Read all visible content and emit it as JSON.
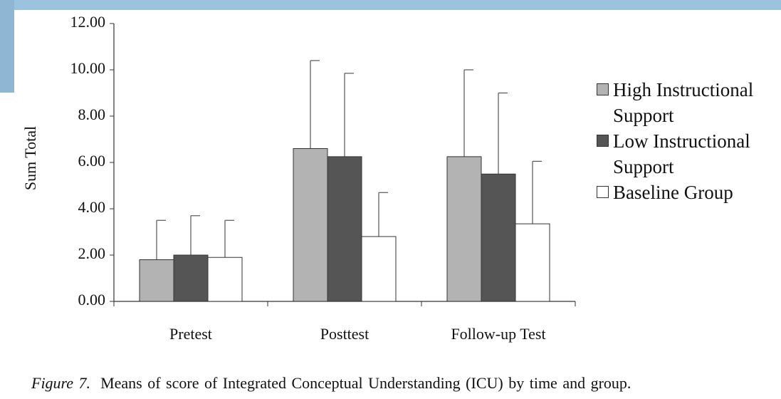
{
  "chart_data": {
    "type": "bar",
    "y_label": "Sum Total",
    "categories": [
      "Pretest",
      "Posttest",
      "Follow-up Test"
    ],
    "series": [
      {
        "name": "High Instructional Support",
        "color": "#b3b3b3",
        "values": [
          1.8,
          6.6,
          6.25
        ],
        "errors": [
          1.7,
          3.8,
          3.75
        ]
      },
      {
        "name": "Low Instructional Support",
        "color": "#555555",
        "values": [
          2.0,
          6.25,
          5.5
        ],
        "errors": [
          1.7,
          3.6,
          3.5
        ]
      },
      {
        "name": "Baseline Group",
        "color": "#ffffff",
        "values": [
          1.9,
          2.8,
          3.35
        ],
        "errors": [
          1.6,
          1.9,
          2.7
        ]
      }
    ],
    "ylim": [
      0,
      12
    ],
    "yticks": [
      {
        "value": 0,
        "label": "0.00"
      },
      {
        "value": 2,
        "label": "2.00"
      },
      {
        "value": 4,
        "label": "4.00"
      },
      {
        "value": 6,
        "label": "6.00"
      },
      {
        "value": 8,
        "label": "8.00"
      },
      {
        "value": 10,
        "label": "10.00"
      },
      {
        "value": 12,
        "label": "12.00"
      }
    ],
    "legend": "right",
    "figure_label": "Figure 7.",
    "caption": "Means of score of Integrated Conceptual Understanding (ICU) by time and group."
  }
}
